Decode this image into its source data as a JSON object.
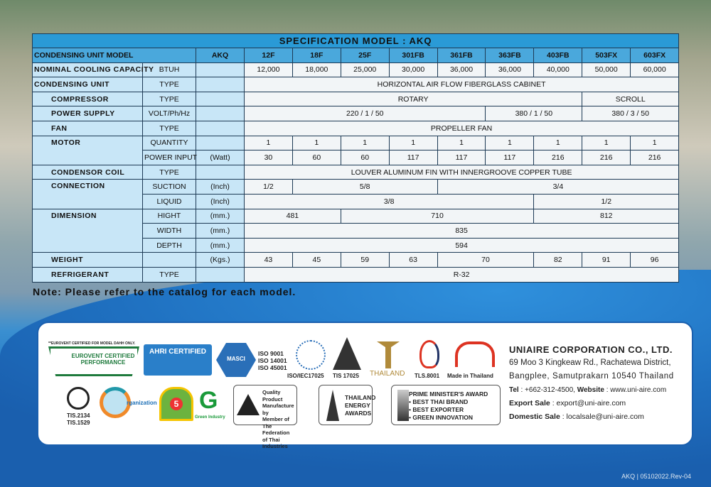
{
  "title": "SPECIFICATION MODEL : AKQ",
  "header": {
    "label": "CONDENSING UNIT MODEL",
    "series": "AKQ",
    "models": [
      "12F",
      "18F",
      "25F",
      "301FB",
      "361FB",
      "363FB",
      "403FB",
      "503FX",
      "603FX"
    ]
  },
  "rows": {
    "capacity": {
      "label": "NOMINAL COOLING CAPACITY",
      "unit": "BTUH",
      "values": [
        "12,000",
        "18,000",
        "25,000",
        "30,000",
        "36,000",
        "36,000",
        "40,000",
        "50,000",
        "60,000"
      ]
    },
    "condensing_unit": {
      "label": "CONDENSING UNIT",
      "unit": "TYPE",
      "value": "HORIZONTAL AIR FLOW FIBERGLASS CABINET"
    },
    "compressor": {
      "label": "COMPRESSOR",
      "unit": "TYPE",
      "values": [
        "ROTARY",
        "SCROLL"
      ]
    },
    "power_supply": {
      "label": "POWER SUPPLY",
      "unit": "VOLT/Ph/Hz",
      "values": [
        "220 / 1 / 50",
        "380 / 1 / 50",
        "380 / 3 / 50"
      ]
    },
    "fan": {
      "label": "FAN",
      "unit": "TYPE",
      "value": "PROPELLER FAN"
    },
    "motor": {
      "label": "MOTOR",
      "quantity_label": "QUANTITY",
      "quantity": [
        "1",
        "1",
        "1",
        "1",
        "1",
        "1",
        "1",
        "1",
        "1"
      ],
      "power_label": "POWER INPUT",
      "power_unit": "(Watt)",
      "power": [
        "30",
        "60",
        "60",
        "117",
        "117",
        "117",
        "216",
        "216",
        "216"
      ]
    },
    "coil": {
      "label": "CONDENSOR COIL",
      "unit": "TYPE",
      "value": "LOUVER ALUMINUM FIN WITH INNERGROOVE COPPER TUBE"
    },
    "connection": {
      "label": "CONNECTION",
      "suction_label": "SUCTION",
      "suction_unit": "(Inch)",
      "suction": [
        "1/2",
        "5/8",
        "3/4"
      ],
      "liquid_label": "LIQUID",
      "liquid_unit": "(Inch)",
      "liquid": [
        "3/8",
        "1/2"
      ]
    },
    "dimension": {
      "label": "DIMENSION",
      "hight_label": "HIGHT",
      "width_label": "WIDTH",
      "depth_label": "DEPTH",
      "unit": "(mm.)",
      "hight": [
        "481",
        "710",
        "812"
      ],
      "width": "835",
      "depth": "594"
    },
    "weight": {
      "label": "WEIGHT",
      "unit": "(Kgs.)",
      "values": [
        "43",
        "45",
        "59",
        "63",
        "70",
        "82",
        "91",
        "96"
      ]
    },
    "refrigerant": {
      "label": "REFRIGERANT",
      "unit": "TYPE",
      "value": "R-32"
    }
  },
  "note": "Note: Please refer to the catalog for each model.",
  "certs": {
    "eurovent_note": "**EUROVENT CERTIFIED FOR MODEL DAHH ONLY.",
    "eurovent": "EUROVENT CERTIFIED PERFORMANCE",
    "ahri": "AHRI CERTIFIED",
    "masci": "MASCI",
    "iso": [
      "ISO 9001",
      "ISO 14001",
      "ISO 45001"
    ],
    "iso_iec": "ISO/IEC17025",
    "tis17025": "TIS 17025",
    "thailand": "THAILAND",
    "tls": "TLS.8001",
    "made": "Made in Thailand",
    "tis": [
      "TIS.2134",
      "TIS.1529"
    ],
    "co2": "rganization",
    "label5": "5",
    "green": "Green Industry",
    "fti": [
      "Quality Product",
      "Manufacture by",
      "Member of",
      "The Federation",
      "of Thai Industries"
    ],
    "energy": [
      "THAILAND",
      "ENERGY",
      "AWARDS"
    ],
    "pm": [
      "PRIME MINISTER'S AWARD",
      "• BEST THAI BRAND",
      "• BEST EXPORTER",
      "• GREEN INNOVATION"
    ]
  },
  "company": {
    "name": "UNIAIRE CORPORATION CO., LTD.",
    "addr1": "69 Moo 3 Kingkeaw Rd., Rachatewa District,",
    "addr2": "Bangplee, Samutprakarn 10540 Thailand",
    "tel_label": "Tel",
    "tel": ": +662-312-4500,",
    "web_label": "Website",
    "web": ": www.uni-aire.com",
    "export_label": "Export Sale",
    "export": ": export@uni-aire.com",
    "domestic_label": "Domestic Sale",
    "domestic": ": localsale@uni-aire.com"
  },
  "footer": "AKQ | 05102022.Rev-04"
}
